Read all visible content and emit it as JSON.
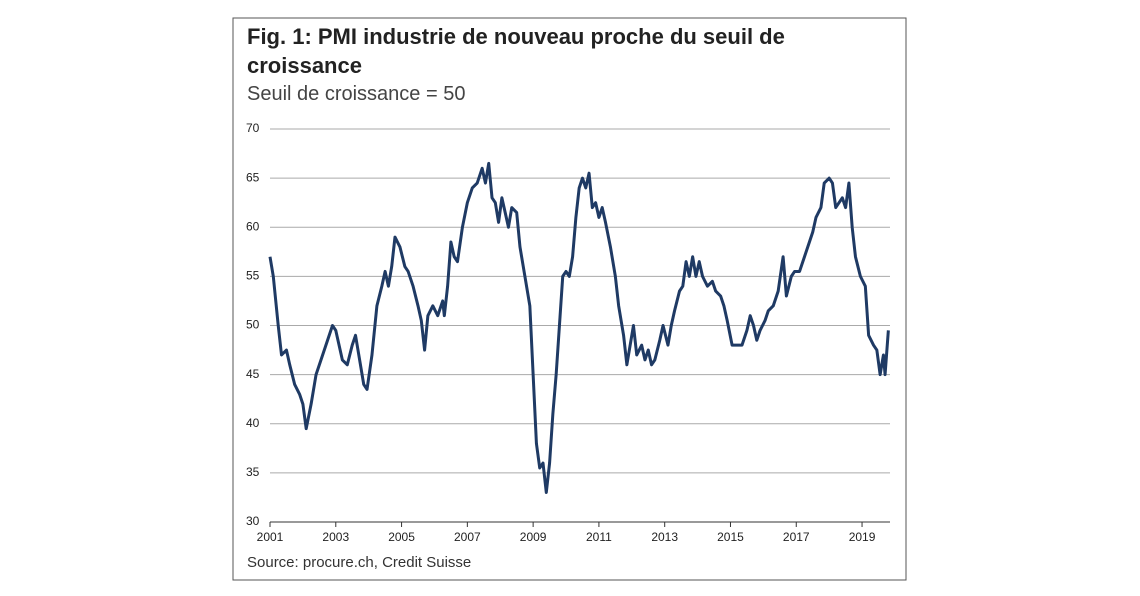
{
  "chart_data": {
    "type": "line",
    "title": "Fig. 1: PMI industrie de nouveau proche du seuil de croissance",
    "subtitle": "Seuil de croissance = 50",
    "source": "Source: procure.ch, Credit Suisse",
    "xlim": [
      2001,
      2019.85
    ],
    "xticks": [
      2001,
      2003,
      2005,
      2007,
      2009,
      2011,
      2013,
      2015,
      2017,
      2019
    ],
    "ylim": [
      30,
      70
    ],
    "yticks": [
      30,
      35,
      40,
      45,
      50,
      55,
      60,
      65,
      70
    ],
    "grid": true,
    "series": [
      {
        "name": "PMI",
        "color": "#1f3a64",
        "x": [
          2001.0,
          2001.1,
          2001.25,
          2001.35,
          2001.5,
          2001.6,
          2001.75,
          2001.9,
          2002.0,
          2002.1,
          2002.25,
          2002.4,
          2002.6,
          2002.75,
          2002.9,
          2003.0,
          2003.1,
          2003.2,
          2003.35,
          2003.5,
          2003.6,
          2003.7,
          2003.85,
          2003.95,
          2004.1,
          2004.25,
          2004.4,
          2004.5,
          2004.6,
          2004.7,
          2004.8,
          2004.95,
          2005.1,
          2005.2,
          2005.35,
          2005.5,
          2005.6,
          2005.7,
          2005.8,
          2005.95,
          2006.1,
          2006.25,
          2006.3,
          2006.4,
          2006.5,
          2006.6,
          2006.7,
          2006.85,
          2007.0,
          2007.15,
          2007.3,
          2007.45,
          2007.55,
          2007.65,
          2007.75,
          2007.85,
          2007.95,
          2008.05,
          2008.15,
          2008.25,
          2008.35,
          2008.5,
          2008.6,
          2008.75,
          2008.9,
          2009.0,
          2009.1,
          2009.2,
          2009.3,
          2009.4,
          2009.5,
          2009.6,
          2009.7,
          2009.8,
          2009.9,
          2010.0,
          2010.1,
          2010.2,
          2010.3,
          2010.4,
          2010.5,
          2010.6,
          2010.7,
          2010.8,
          2010.9,
          2011.0,
          2011.1,
          2011.2,
          2011.35,
          2011.5,
          2011.6,
          2011.75,
          2011.85,
          2011.95,
          2012.05,
          2012.15,
          2012.3,
          2012.4,
          2012.5,
          2012.6,
          2012.7,
          2012.85,
          2012.95,
          2013.1,
          2013.2,
          2013.3,
          2013.45,
          2013.55,
          2013.65,
          2013.75,
          2013.85,
          2013.95,
          2014.05,
          2014.15,
          2014.3,
          2014.45,
          2014.55,
          2014.7,
          2014.8,
          2014.9,
          2015.05,
          2015.2,
          2015.35,
          2015.5,
          2015.6,
          2015.7,
          2015.8,
          2015.9,
          2016.05,
          2016.15,
          2016.3,
          2016.45,
          2016.6,
          2016.7,
          2016.85,
          2016.95,
          2017.1,
          2017.25,
          2017.4,
          2017.5,
          2017.6,
          2017.75,
          2017.85,
          2018.0,
          2018.1,
          2018.2,
          2018.3,
          2018.4,
          2018.5,
          2018.6,
          2018.7,
          2018.8,
          2018.95,
          2019.1,
          2019.2,
          2019.35,
          2019.45,
          2019.55,
          2019.65,
          2019.7,
          2019.8
        ],
        "values": [
          57,
          55,
          50,
          47,
          47.5,
          46,
          44,
          43,
          42,
          39.5,
          42,
          45,
          47,
          48.5,
          50,
          49.5,
          48,
          46.5,
          46,
          48,
          49,
          47,
          44,
          43.5,
          47,
          52,
          54,
          55.5,
          54,
          56,
          59,
          58,
          56,
          55.5,
          54,
          52,
          50.5,
          47.5,
          51,
          52,
          51,
          52.5,
          51,
          54,
          58.5,
          57,
          56.5,
          60,
          62.5,
          64,
          64.5,
          66,
          64.5,
          66.5,
          63,
          62.5,
          60.5,
          63,
          61.5,
          60,
          62,
          61.5,
          58,
          55,
          52,
          45,
          38,
          35.5,
          36,
          33,
          36,
          41,
          45,
          50,
          55,
          55.5,
          55,
          57,
          61,
          64,
          65,
          64,
          65.5,
          62,
          62.5,
          61,
          62,
          60.5,
          58,
          55,
          52,
          49,
          46,
          48,
          50,
          47,
          48,
          46.5,
          47.5,
          46,
          46.5,
          48.5,
          50,
          48,
          50,
          51.5,
          53.5,
          54,
          56.5,
          55,
          57,
          55,
          56.5,
          55,
          54,
          54.5,
          53.5,
          53,
          52,
          50.5,
          48,
          48,
          48,
          49.5,
          51,
          50,
          48.5,
          49.5,
          50.5,
          51.5,
          52,
          53.5,
          57,
          53,
          55,
          55.5,
          55.5,
          57,
          58.5,
          59.5,
          61,
          62,
          64.5,
          65,
          64.5,
          62,
          62.5,
          63,
          62,
          64.5,
          60,
          57,
          55,
          54,
          49,
          48,
          47.5,
          45,
          47,
          45,
          49.5
        ]
      }
    ]
  }
}
